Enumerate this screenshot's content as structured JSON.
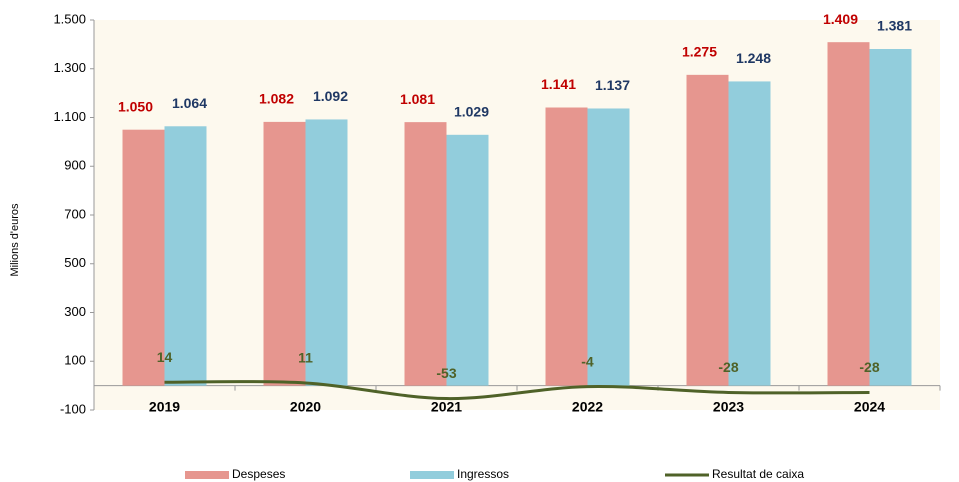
{
  "chart_data": {
    "type": "bar_line",
    "y_label": "Milions d'euros",
    "categories": [
      "2019",
      "2020",
      "2021",
      "2022",
      "2023",
      "2024"
    ],
    "series": [
      {
        "name": "Despeses",
        "type": "bar",
        "color": "#e6968f",
        "label_color": "#c00000",
        "values": [
          1050,
          1082,
          1081,
          1141,
          1275,
          1409
        ],
        "value_labels": [
          "1.050",
          "1.082",
          "1.081",
          "1.141",
          "1.275",
          "1.409"
        ]
      },
      {
        "name": "Ingressos",
        "type": "bar",
        "color": "#92cddc",
        "label_color": "#1f3864",
        "values": [
          1064,
          1092,
          1029,
          1137,
          1248,
          1381
        ],
        "value_labels": [
          "1.064",
          "1.092",
          "1.029",
          "1.137",
          "1.248",
          "1.381"
        ]
      },
      {
        "name": "Resultat de caixa",
        "type": "line",
        "color": "#4f6228",
        "label_color": "#4f6228",
        "values": [
          14,
          11,
          -53,
          -4,
          -28,
          -28
        ]
      }
    ],
    "ylim": [
      -100,
      1500
    ],
    "yticks": [
      -100,
      100,
      300,
      500,
      700,
      900,
      {
        "value": 1100,
        "label": "1.100"
      },
      {
        "value": 1300,
        "label": "1.300"
      },
      {
        "value": 1500,
        "label": "1.500"
      }
    ],
    "grid": false,
    "legend": "bottom"
  }
}
